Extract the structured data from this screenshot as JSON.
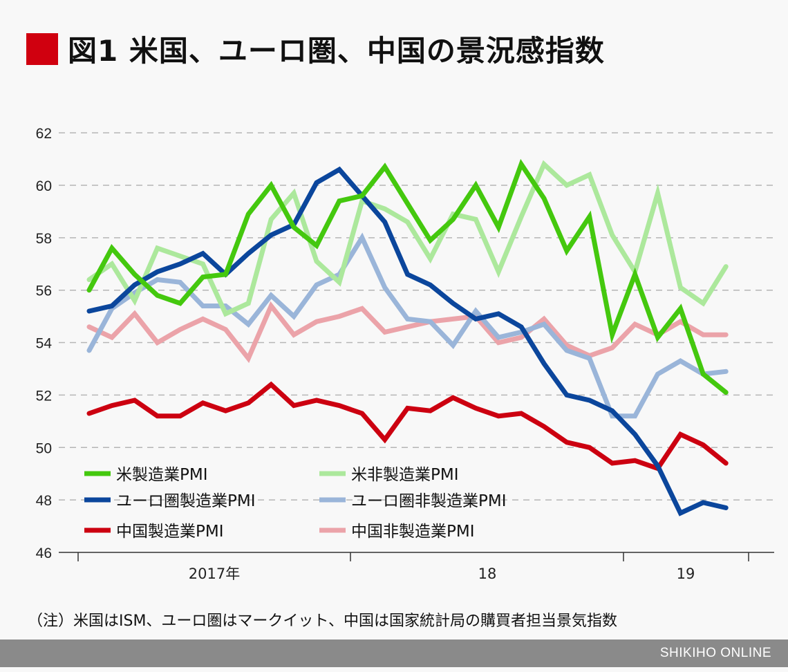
{
  "title": "図1 米国、ユーロ圏、中国の景況感指数",
  "title_mark_color": "#d0000f",
  "note": "（注）米国はISM、ユーロ圏はマークイット、中国は国家統計局の購買者担当景気指数",
  "footer": "SHIKIHO ONLINE",
  "chart_data": {
    "type": "line",
    "title": "図1 米国、ユーロ圏、中国の景況感指数",
    "xlabel": "",
    "ylabel": "",
    "ylim": [
      46,
      62
    ],
    "yticks": [
      46,
      48,
      50,
      52,
      54,
      56,
      58,
      60,
      62
    ],
    "x_period": "monthly, 2017-01 to 2019-05",
    "x_tick_labels": [
      "2017年",
      "18",
      "19"
    ],
    "grid": "horizontal dashed",
    "legend": "bottom-left",
    "series": [
      {
        "name": "米製造業PMI",
        "color": "#44c80e",
        "values": [
          56.0,
          57.6,
          56.6,
          55.8,
          55.5,
          56.5,
          56.6,
          58.9,
          60.0,
          58.4,
          57.7,
          59.4,
          59.6,
          60.7,
          59.3,
          57.9,
          58.7,
          60.0,
          58.4,
          60.8,
          59.5,
          57.5,
          58.8,
          54.3,
          56.6,
          54.2,
          55.3,
          52.8,
          52.1
        ]
      },
      {
        "name": "米非製造業PMI",
        "color": "#ace89c",
        "values": [
          56.4,
          57.0,
          55.6,
          57.6,
          57.3,
          57.0,
          55.1,
          55.5,
          58.7,
          59.7,
          57.1,
          56.3,
          59.4,
          59.1,
          58.6,
          57.2,
          58.9,
          58.7,
          56.7,
          58.8,
          60.8,
          60.0,
          60.4,
          58.1,
          56.7,
          59.7,
          56.1,
          55.5,
          56.9
        ]
      },
      {
        "name": "ユーロ圏製造業PMI",
        "color": "#0b469c",
        "values": [
          55.2,
          55.4,
          56.2,
          56.7,
          57.0,
          57.4,
          56.6,
          57.4,
          58.1,
          58.5,
          60.1,
          60.6,
          59.6,
          58.6,
          56.6,
          56.2,
          55.5,
          54.9,
          55.1,
          54.6,
          53.2,
          52.0,
          51.8,
          51.4,
          50.5,
          49.3,
          47.5,
          47.9,
          47.7
        ]
      },
      {
        "name": "ユーロ圏非製造業PMI",
        "color": "#9ab5d9",
        "values": [
          53.7,
          55.3,
          55.9,
          56.4,
          56.3,
          55.4,
          55.4,
          54.7,
          55.8,
          55.0,
          56.2,
          56.6,
          58.0,
          56.1,
          54.9,
          54.8,
          53.9,
          55.2,
          54.2,
          54.4,
          54.7,
          53.7,
          53.4,
          51.2,
          51.2,
          52.8,
          53.3,
          52.8,
          52.9
        ]
      },
      {
        "name": "中国製造業PMI",
        "color": "#cc0010",
        "values": [
          51.3,
          51.6,
          51.8,
          51.2,
          51.2,
          51.7,
          51.4,
          51.7,
          52.4,
          51.6,
          51.8,
          51.6,
          51.3,
          50.3,
          51.5,
          51.4,
          51.9,
          51.5,
          51.2,
          51.3,
          50.8,
          50.2,
          50.0,
          49.4,
          49.5,
          49.2,
          50.5,
          50.1,
          49.4
        ]
      },
      {
        "name": "中国非製造業PMI",
        "color": "#eba3a9",
        "values": [
          54.6,
          54.2,
          55.1,
          54.0,
          54.5,
          54.9,
          54.5,
          53.4,
          55.4,
          54.3,
          54.8,
          55.0,
          55.3,
          54.4,
          54.6,
          54.8,
          54.9,
          55.0,
          54.0,
          54.2,
          54.9,
          53.9,
          53.5,
          53.8,
          54.7,
          54.3,
          54.8,
          54.3,
          54.3
        ]
      }
    ]
  }
}
